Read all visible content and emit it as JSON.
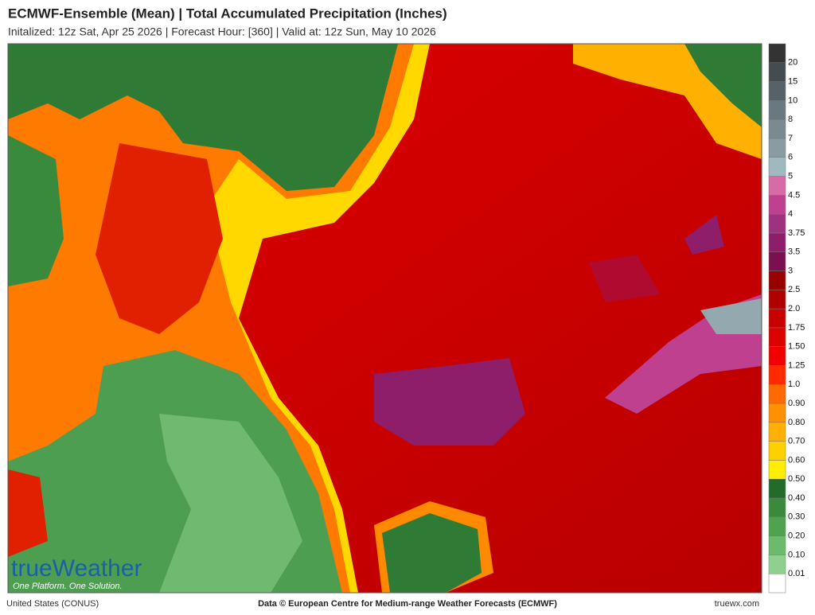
{
  "header": {
    "title": "ECMWF-Ensemble (Mean)  |  Total Accumulated Precipitation (Inches)",
    "subtitle": "Initalized: 12z Sat, Apr 25 2026  |  Forecast Hour: [360]  |  Valid at: 12z Sun, May 10 2026"
  },
  "legend": {
    "labels": [
      "0.01",
      "0.10",
      "0.20",
      "0.30",
      "0.40",
      "0.50",
      "0.60",
      "0.70",
      "0.80",
      "0.90",
      "1.0",
      "1.25",
      "1.50",
      "1.75",
      "2.0",
      "2.5",
      "3",
      "3.5",
      "3.75",
      "4",
      "4.5",
      "5",
      "6",
      "7",
      "8",
      "10",
      "15",
      "20"
    ]
  },
  "logo": {
    "name": "trueWeather",
    "tagline": "One Platform. One Solution."
  },
  "footer": {
    "region": "United States (CONUS)",
    "credit": "Data © European Centre for Medium-range Weather Forecasts (ECMWF)",
    "site": "truewx.com"
  }
}
